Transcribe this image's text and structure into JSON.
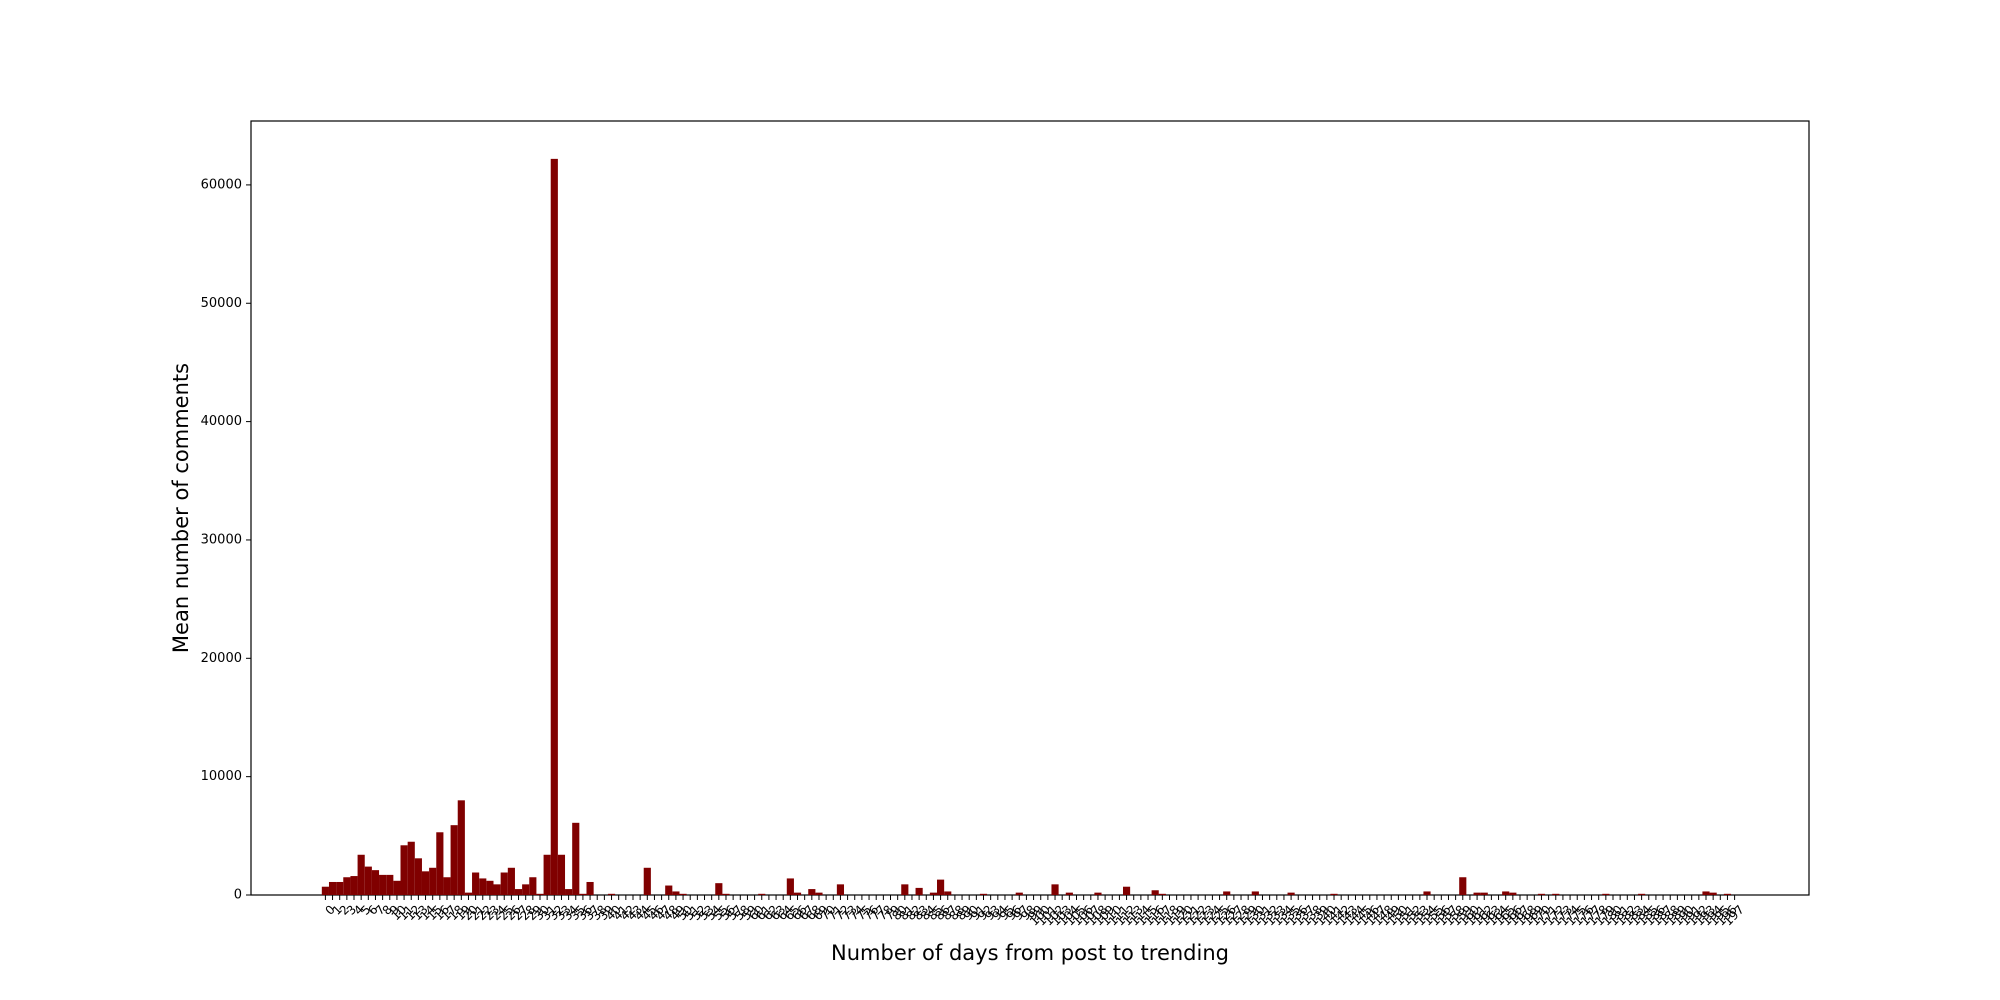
{
  "chart_data": {
    "type": "bar",
    "x_label": "Number of days from post to trending",
    "y_label": "Mean number of comments",
    "color": "#800000",
    "categories": [
      0,
      1,
      2,
      3,
      4,
      5,
      6,
      7,
      8,
      9,
      10,
      11,
      12,
      13,
      14,
      15,
      16,
      17,
      18,
      19,
      20,
      21,
      22,
      23,
      24,
      25,
      26,
      27,
      28,
      29,
      30,
      31,
      32,
      33,
      34,
      35,
      36,
      37,
      38,
      39,
      40,
      41,
      42,
      43,
      44,
      45,
      46,
      47,
      48,
      49,
      50,
      51,
      52,
      53,
      54,
      55,
      56,
      57,
      58,
      59,
      60,
      61,
      62,
      63,
      64,
      65,
      66,
      67,
      68,
      69,
      70,
      71,
      72,
      73,
      74,
      75,
      76,
      77,
      78,
      79,
      80,
      81,
      82,
      83,
      84,
      85,
      86,
      87,
      88,
      89,
      90,
      91,
      92,
      93,
      94,
      95,
      96,
      97,
      98,
      99,
      100,
      101,
      102,
      103,
      104,
      105,
      106,
      107,
      108,
      109,
      110,
      111,
      112,
      113,
      114,
      115,
      116,
      117,
      118,
      119,
      120,
      121,
      122,
      123,
      124,
      125,
      126,
      127,
      128,
      129,
      130,
      131,
      132,
      133,
      134,
      135,
      136,
      137,
      138,
      139,
      140,
      141,
      142,
      143,
      144,
      145,
      146,
      147,
      148,
      149,
      150,
      151,
      152,
      153,
      154,
      155,
      156,
      157,
      158,
      159,
      160,
      161,
      162,
      163,
      164,
      165,
      166,
      167,
      168,
      169,
      170,
      171,
      172,
      173,
      174,
      175,
      176,
      177,
      178,
      179,
      180,
      181,
      182,
      183,
      184,
      185,
      186,
      187,
      188,
      189,
      190,
      191,
      192,
      193,
      194,
      195,
      196,
      197
    ],
    "values": [
      700,
      1100,
      1100,
      1500,
      1600,
      3400,
      2400,
      2100,
      1700,
      1700,
      1200,
      4200,
      4500,
      3100,
      2000,
      2300,
      5300,
      1500,
      5900,
      8000,
      200,
      1900,
      1400,
      1200,
      900,
      1900,
      2300,
      500,
      900,
      1500,
      100,
      3400,
      62200,
      3400,
      500,
      6100,
      100,
      1100,
      0,
      0,
      100,
      0,
      0,
      0,
      0,
      2300,
      0,
      0,
      800,
      300,
      100,
      0,
      0,
      0,
      0,
      1000,
      100,
      0,
      0,
      0,
      0,
      100,
      0,
      0,
      0,
      1400,
      200,
      0,
      500,
      200,
      0,
      0,
      900,
      0,
      0,
      0,
      0,
      0,
      0,
      0,
      0,
      900,
      0,
      600,
      0,
      200,
      1300,
      300,
      0,
      0,
      0,
      0,
      100,
      0,
      0,
      0,
      0,
      200,
      0,
      0,
      0,
      0,
      900,
      0,
      200,
      0,
      0,
      0,
      200,
      0,
      0,
      0,
      700,
      0,
      0,
      0,
      400,
      100,
      0,
      0,
      0,
      0,
      0,
      0,
      0,
      0,
      300,
      0,
      0,
      0,
      300,
      0,
      0,
      0,
      0,
      200,
      0,
      0,
      0,
      0,
      0,
      100,
      0,
      0,
      0,
      0,
      0,
      0,
      0,
      0,
      0,
      0,
      0,
      0,
      300,
      0,
      0,
      0,
      0,
      1500,
      0,
      200,
      200,
      0,
      0,
      300,
      200,
      0,
      0,
      0,
      100,
      0,
      100,
      0,
      0,
      0,
      0,
      0,
      0,
      100,
      0,
      0,
      0,
      0,
      100,
      0,
      0,
      0,
      0,
      0,
      0,
      0,
      0,
      300,
      200,
      0,
      100,
      0
    ],
    "ylim": [
      0,
      65400
    ],
    "yticks": [
      0,
      10000,
      20000,
      30000,
      40000,
      50000,
      60000
    ]
  }
}
